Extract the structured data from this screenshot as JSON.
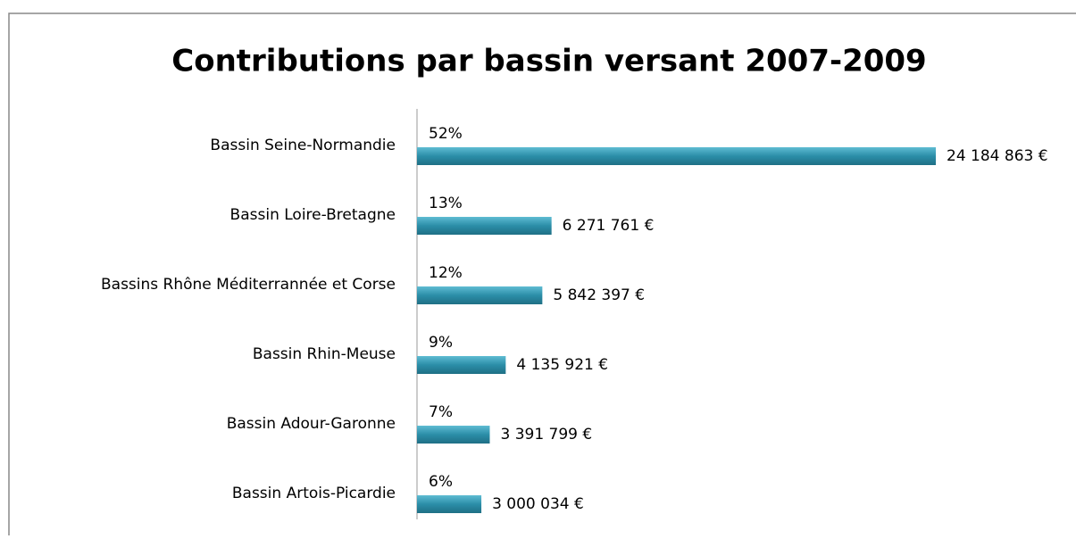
{
  "chart_data": {
    "type": "hbar",
    "title": "Contributions par bassin versant 2007-2009",
    "categories": [
      "Bassin Seine-Normandie",
      "Bassin Loire-Bretagne",
      "Bassins Rhône Méditerrannée et Corse",
      "Bassin Rhin-Meuse",
      "Bassin Adour-Garonne",
      "Bassin Artois-Picardie"
    ],
    "values": [
      24184863,
      6271761,
      5842397,
      4135921,
      3391799,
      3000034
    ],
    "value_labels": [
      "24 184 863 €",
      "6 271 761 €",
      "5 842 397 €",
      "4 135 921 €",
      "3 391 799 €",
      "3 000 034 €"
    ],
    "shares": [
      52,
      13,
      12,
      9,
      7,
      6
    ],
    "share_labels": [
      "52%",
      "13%",
      "12%",
      "9%",
      "7%",
      "6%"
    ],
    "color": "#2b8ea8"
  }
}
